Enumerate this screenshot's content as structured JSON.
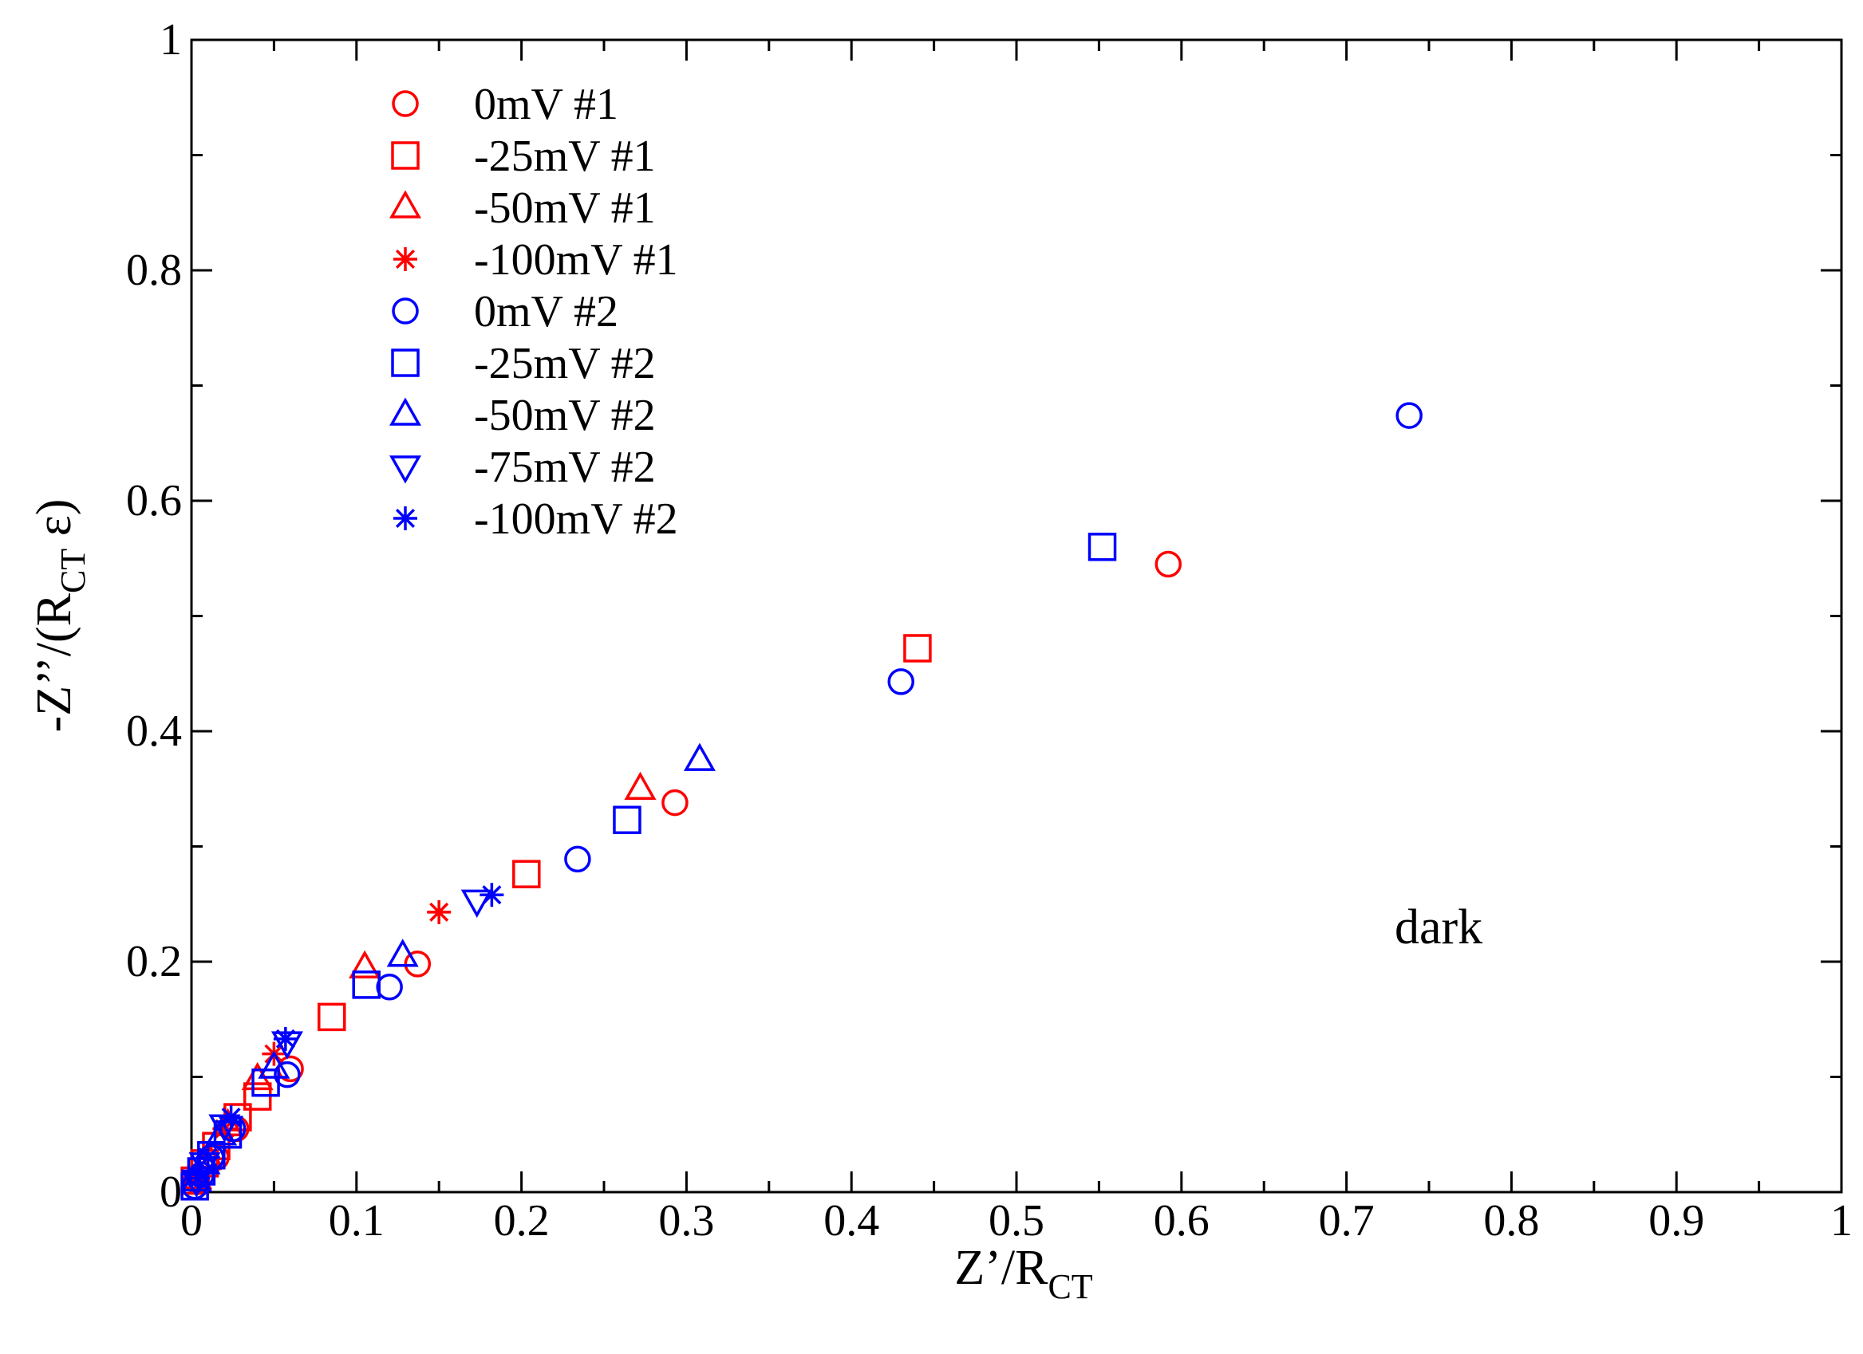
{
  "chart_data": {
    "type": "scatter",
    "title": "",
    "xlabel": {
      "main": "Z’/R",
      "sub": "CT"
    },
    "ylabel": {
      "pre": "-Z’’/(R",
      "sub": "CT",
      "post": " ε)"
    },
    "xlim": [
      0,
      1
    ],
    "ylim": [
      0,
      1
    ],
    "x_ticks": [
      0,
      0.1,
      0.2,
      0.3,
      0.4,
      0.5,
      0.6,
      0.7,
      0.8,
      0.9,
      1
    ],
    "x_tick_labels": [
      "0",
      "0.1",
      "0.2",
      "0.3",
      "0.4",
      "0.5",
      "0.6",
      "0.7",
      "0.8",
      "0.9",
      "1"
    ],
    "y_ticks": [
      0,
      0.2,
      0.4,
      0.6,
      0.8,
      1
    ],
    "y_tick_labels": [
      "0",
      "0.2",
      "0.4",
      "0.6",
      "0.8",
      "1"
    ],
    "grid": false,
    "legend_position": "top-left",
    "annotation": "dark",
    "series": [
      {
        "name": "0mV #1",
        "color": "#ff0000",
        "marker": "circle",
        "x": [
          0.003,
          0.015,
          0.027,
          0.06,
          0.137,
          0.293,
          0.592
        ],
        "y": [
          0.01,
          0.03,
          0.055,
          0.107,
          0.198,
          0.338,
          0.545
        ]
      },
      {
        "name": "-25mV #1",
        "color": "#ff0000",
        "marker": "square",
        "x": [
          0.002,
          0.008,
          0.015,
          0.028,
          0.04,
          0.085,
          0.203,
          0.44
        ],
        "y": [
          0.01,
          0.025,
          0.04,
          0.065,
          0.083,
          0.152,
          0.276,
          0.472
        ]
      },
      {
        "name": "-50mV #1",
        "color": "#ff0000",
        "marker": "triangle-up",
        "x": [
          0.003,
          0.01,
          0.022,
          0.04,
          0.105,
          0.272
        ],
        "y": [
          0.012,
          0.03,
          0.058,
          0.098,
          0.195,
          0.35
        ]
      },
      {
        "name": "-100mV #1",
        "color": "#ff0000",
        "marker": "asterisk",
        "x": [
          0.003,
          0.01,
          0.02,
          0.05,
          0.15
        ],
        "y": [
          0.01,
          0.03,
          0.055,
          0.12,
          0.243
        ]
      },
      {
        "name": "0mV #2",
        "color": "#0000ff",
        "marker": "circle",
        "x": [
          0.002,
          0.006,
          0.012,
          0.025,
          0.058,
          0.12,
          0.234,
          0.43,
          0.738
        ],
        "y": [
          0.005,
          0.015,
          0.03,
          0.055,
          0.102,
          0.178,
          0.289,
          0.443,
          0.674
        ]
      },
      {
        "name": "-25mV #2",
        "color": "#0000ff",
        "marker": "square",
        "x": [
          0.002,
          0.006,
          0.012,
          0.022,
          0.045,
          0.106,
          0.264,
          0.552
        ],
        "y": [
          0.005,
          0.018,
          0.032,
          0.05,
          0.095,
          0.18,
          0.323,
          0.56
        ]
      },
      {
        "name": "-50mV #2",
        "color": "#0000ff",
        "marker": "triangle-up",
        "x": [
          0.003,
          0.008,
          0.018,
          0.05,
          0.128,
          0.308
        ],
        "y": [
          0.01,
          0.025,
          0.05,
          0.108,
          0.205,
          0.375
        ]
      },
      {
        "name": "-75mV #2",
        "color": "#0000ff",
        "marker": "triangle-down",
        "x": [
          0.003,
          0.008,
          0.02,
          0.058,
          0.173
        ],
        "y": [
          0.01,
          0.025,
          0.058,
          0.13,
          0.253
        ]
      },
      {
        "name": "-100mV #2",
        "color": "#0000ff",
        "marker": "asterisk",
        "x": [
          0.004,
          0.01,
          0.024,
          0.057,
          0.182
        ],
        "y": [
          0.012,
          0.03,
          0.065,
          0.133,
          0.258
        ]
      }
    ]
  }
}
